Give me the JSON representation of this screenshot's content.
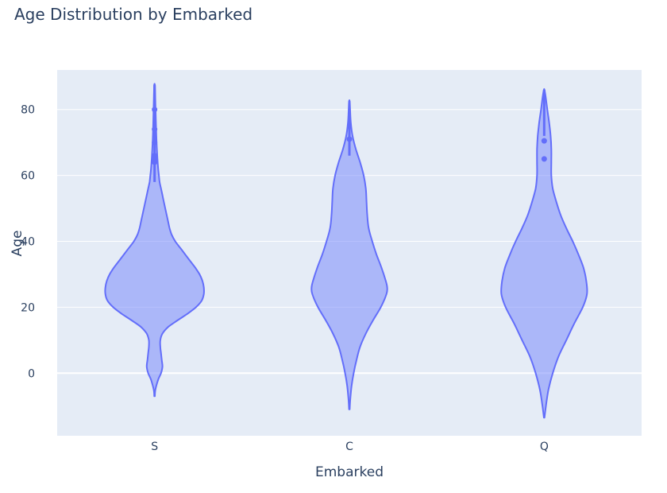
{
  "chart_data": {
    "type": "violin",
    "title": "Age Distribution by Embarked",
    "xlabel": "Embarked",
    "ylabel": "Age",
    "ylim": [
      -19,
      92
    ],
    "yticks": [
      0,
      20,
      40,
      60,
      80
    ],
    "grid": true,
    "colors": {
      "fill": "#7c8cfb",
      "line": "#636efa",
      "plot_bg": "#e5ecf6",
      "text": "#2a3f5f"
    },
    "series": [
      {
        "category": "S",
        "ymin": -7,
        "ymax": 87.5,
        "profile": [
          [
            -7,
            0.02
          ],
          [
            -5,
            0.06
          ],
          [
            -2,
            0.25
          ],
          [
            0,
            0.45
          ],
          [
            2,
            0.55
          ],
          [
            4,
            0.5
          ],
          [
            6,
            0.45
          ],
          [
            8,
            0.4
          ],
          [
            10,
            0.4
          ],
          [
            12,
            0.55
          ],
          [
            14,
            0.95
          ],
          [
            16,
            1.6
          ],
          [
            18,
            2.3
          ],
          [
            20,
            2.9
          ],
          [
            22,
            3.3
          ],
          [
            24,
            3.45
          ],
          [
            26,
            3.45
          ],
          [
            28,
            3.35
          ],
          [
            30,
            3.15
          ],
          [
            32,
            2.85
          ],
          [
            34,
            2.5
          ],
          [
            36,
            2.15
          ],
          [
            38,
            1.8
          ],
          [
            40,
            1.45
          ],
          [
            42,
            1.2
          ],
          [
            44,
            1.05
          ],
          [
            46,
            0.95
          ],
          [
            48,
            0.85
          ],
          [
            50,
            0.75
          ],
          [
            52,
            0.65
          ],
          [
            54,
            0.55
          ],
          [
            56,
            0.45
          ],
          [
            58,
            0.35
          ],
          [
            60,
            0.3
          ],
          [
            62,
            0.25
          ],
          [
            65,
            0.2
          ],
          [
            70,
            0.14
          ],
          [
            75,
            0.1
          ],
          [
            80,
            0.07
          ],
          [
            85,
            0.04
          ],
          [
            87.5,
            0.02
          ]
        ],
        "outliers": [
          80,
          74,
          70,
          66,
          65,
          64
        ],
        "whisker_low": 58,
        "whisker_high": 87.5
      },
      {
        "category": "C",
        "ymin": -11,
        "ymax": 82.5,
        "profile": [
          [
            -11,
            0.02
          ],
          [
            -8,
            0.06
          ],
          [
            -4,
            0.15
          ],
          [
            0,
            0.3
          ],
          [
            4,
            0.5
          ],
          [
            8,
            0.75
          ],
          [
            12,
            1.15
          ],
          [
            16,
            1.65
          ],
          [
            20,
            2.2
          ],
          [
            24,
            2.6
          ],
          [
            26,
            2.65
          ],
          [
            28,
            2.55
          ],
          [
            32,
            2.25
          ],
          [
            36,
            1.9
          ],
          [
            40,
            1.6
          ],
          [
            44,
            1.35
          ],
          [
            48,
            1.25
          ],
          [
            52,
            1.2
          ],
          [
            56,
            1.15
          ],
          [
            60,
            1.0
          ],
          [
            64,
            0.75
          ],
          [
            68,
            0.45
          ],
          [
            72,
            0.22
          ],
          [
            76,
            0.1
          ],
          [
            80,
            0.05
          ],
          [
            82.5,
            0.02
          ]
        ],
        "outliers": [
          71
        ],
        "whisker_low": 66,
        "whisker_high": 82.5
      },
      {
        "category": "Q",
        "ymin": -13.5,
        "ymax": 86,
        "profile": [
          [
            -13.5,
            0.02
          ],
          [
            -10,
            0.12
          ],
          [
            -5,
            0.3
          ],
          [
            0,
            0.6
          ],
          [
            5,
            1.0
          ],
          [
            10,
            1.55
          ],
          [
            15,
            2.1
          ],
          [
            20,
            2.7
          ],
          [
            24,
            3.0
          ],
          [
            28,
            2.95
          ],
          [
            32,
            2.75
          ],
          [
            36,
            2.4
          ],
          [
            40,
            2.0
          ],
          [
            44,
            1.55
          ],
          [
            48,
            1.15
          ],
          [
            52,
            0.85
          ],
          [
            56,
            0.6
          ],
          [
            60,
            0.5
          ],
          [
            64,
            0.5
          ],
          [
            68,
            0.5
          ],
          [
            72,
            0.45
          ],
          [
            76,
            0.35
          ],
          [
            80,
            0.22
          ],
          [
            84,
            0.1
          ],
          [
            86,
            0.02
          ]
        ],
        "outliers": [
          70.5,
          65
        ],
        "whisker_low": 72,
        "whisker_high": 86
      }
    ]
  }
}
